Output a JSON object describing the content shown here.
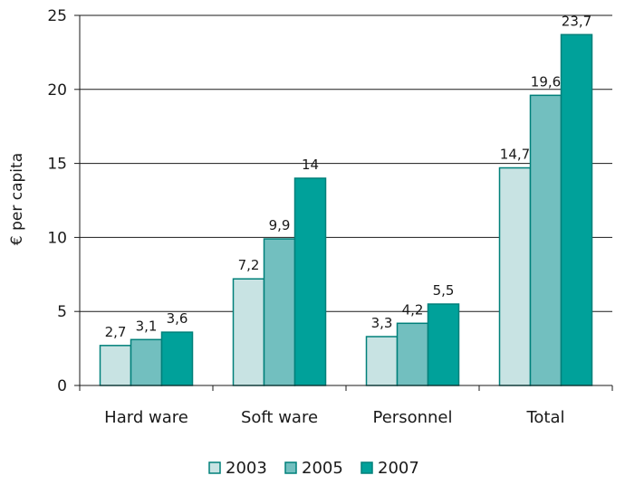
{
  "chart_data": {
    "type": "bar",
    "title": "",
    "xlabel": "",
    "ylabel": "€ per capita",
    "ylim": [
      0,
      25
    ],
    "yticks": [
      "0",
      "5",
      "10",
      "15",
      "20",
      "25"
    ],
    "ytick_values": [
      0,
      5,
      10,
      15,
      20,
      25
    ],
    "grid": true,
    "legend_position": "bottom",
    "categories": [
      "Hard ware",
      "Soft ware",
      "Personnel",
      "Total"
    ],
    "series": [
      {
        "name": "2003",
        "color": "#c8e3e3",
        "values": [
          2.7,
          7.2,
          3.3,
          14.7
        ],
        "labels": [
          "2,7",
          "7,2",
          "3,3",
          "14,7"
        ]
      },
      {
        "name": "2005",
        "color": "#72bfbf",
        "values": [
          3.1,
          9.9,
          4.2,
          19.6
        ],
        "labels": [
          "3,1",
          "9,9",
          "4,2",
          "19,6"
        ]
      },
      {
        "name": "2007",
        "color": "#00a19a",
        "values": [
          3.6,
          14,
          5.5,
          23.7
        ],
        "labels": [
          "3,6",
          "14",
          "5,5",
          "23,7"
        ]
      }
    ],
    "bar_stroke": "#00807a"
  }
}
